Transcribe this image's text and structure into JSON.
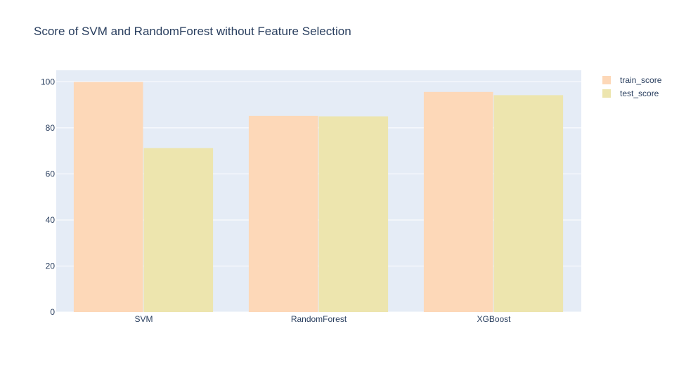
{
  "chart_data": {
    "type": "bar",
    "title": "Score of SVM and RandomForest without Feature Selection",
    "xlabel": "",
    "ylabel": "",
    "categories": [
      "SVM",
      "RandomForest",
      "XGBoost"
    ],
    "series": [
      {
        "name": "train_score",
        "values": [
          99.9,
          85.2,
          95.6
        ],
        "color": "#fdd8b8"
      },
      {
        "name": "test_score",
        "values": [
          71.2,
          85.0,
          94.2
        ],
        "color": "#ede5ae"
      }
    ],
    "ylim": [
      0,
      105
    ],
    "yticks": [
      0,
      20,
      40,
      60,
      80,
      100
    ],
    "grid": true,
    "plot_background": "#e5ecf6",
    "legend_position": "top-right",
    "barmode": "group"
  }
}
